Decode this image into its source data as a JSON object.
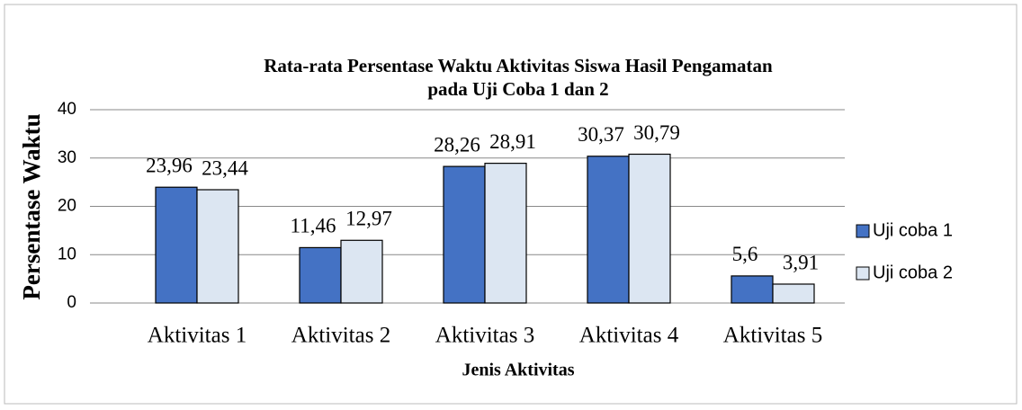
{
  "chart_data": {
    "type": "bar",
    "title": [
      "Rata-rata Persentase Waktu Aktivitas Siswa Hasil Pengamatan",
      "pada Uji Coba 1 dan 2"
    ],
    "x_label": "Jenis Aktivitas",
    "y_label": "Persentase Waktu",
    "categories": [
      "Aktivitas 1",
      "Aktivitas 2",
      "Aktivitas 3",
      "Aktivitas 4",
      "Aktivitas 5"
    ],
    "series": [
      {
        "name": "Uji coba 1",
        "color": "#4472c4",
        "values": [
          23.96,
          11.46,
          28.26,
          30.37,
          5.6
        ],
        "value_labels": [
          "23,96",
          "11,46",
          "28,26",
          "30,37",
          "5,6"
        ]
      },
      {
        "name": "Uji coba 2",
        "color": "#dce6f2",
        "values": [
          23.44,
          12.97,
          28.91,
          30.79,
          3.91
        ],
        "value_labels": [
          "23,44",
          "12,97",
          "28,91",
          "30,79",
          "3,91"
        ]
      }
    ],
    "ylim": [
      0,
      40
    ],
    "yticks": [
      0,
      10,
      20,
      30,
      40
    ],
    "grid": true,
    "legend": "right"
  }
}
